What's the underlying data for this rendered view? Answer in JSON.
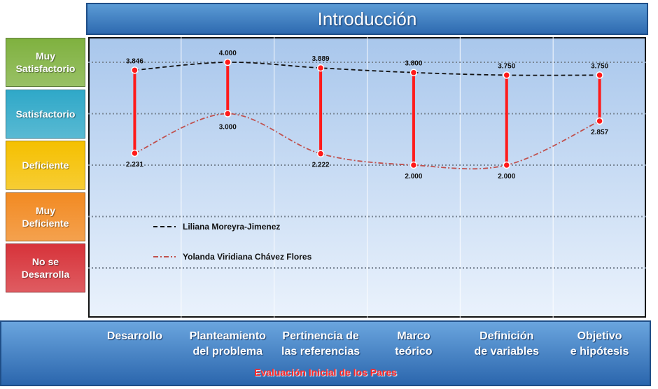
{
  "chart_data": {
    "type": "line",
    "title": "Introducción",
    "xlabel": "Evaluación Inicial de los Pares",
    "categories": [
      "Desarrollo\n ",
      "Planteamiento\ndel problema",
      "Pertinencia de\nlas referencias",
      "Marco\nteórico",
      "Definición\nde variables",
      "Objetivo\ne hipótesis"
    ],
    "levels": [
      {
        "label": "Muy\nSatisfactorio",
        "value": 4,
        "color": "#7fb13f"
      },
      {
        "label": "Satisfactorio",
        "value": 3,
        "color": "#2fa8c8"
      },
      {
        "label": "Deficiente",
        "value": 2,
        "color": "#f5c000"
      },
      {
        "label": "Muy\nDeficiente",
        "value": 1,
        "color": "#f28a22"
      },
      {
        "label": "No se\nDesarrolla",
        "value": 0,
        "color": "#d7333a"
      }
    ],
    "ylim": [
      -0.8,
      4.2
    ],
    "series": [
      {
        "name": "Liliana Moreyra-Jimenez",
        "values": [
          3.846,
          4.0,
          3.889,
          3.8,
          3.75,
          3.75
        ],
        "labels": [
          "3.846",
          "4.000",
          "3.889",
          "3.800",
          "3.750",
          "3.750"
        ],
        "color": "#111111",
        "dash": "6,4"
      },
      {
        "name": "Yolanda Viridiana Chávez Flores",
        "values": [
          2.231,
          3.0,
          2.222,
          2.0,
          2.0,
          2.857
        ],
        "labels": [
          "2.231",
          "3.000",
          "2.222",
          "2.000",
          "2.000",
          "2.857"
        ],
        "color": "#c0504d",
        "dash": "7,3,2,3"
      }
    ],
    "grid": true,
    "legend": "left-center"
  }
}
